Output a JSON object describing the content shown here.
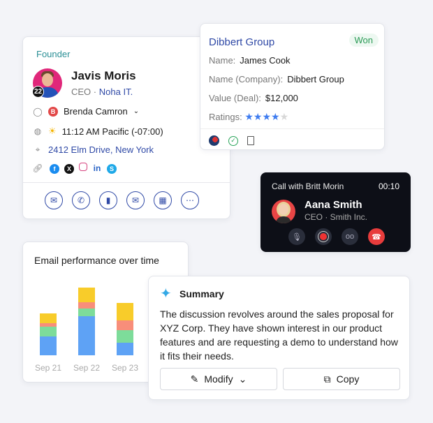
{
  "contact": {
    "tag": "Founder",
    "notifications": "22",
    "name": "Javis Moris",
    "role": "CEO",
    "separator": "·",
    "company": "Noha IT.",
    "owner_initial": "B",
    "owner": "Brenda Camron",
    "local_time": "11:12 AM Pacific (-07:00)",
    "address": "2412 Elm Drive, New York",
    "socials": [
      "facebook",
      "x",
      "instagram",
      "linkedin",
      "skype"
    ],
    "actions": [
      "email",
      "call",
      "note",
      "email-template",
      "meeting",
      "more"
    ]
  },
  "deal": {
    "title": "Dibbert Group",
    "status": "Won",
    "fields": [
      {
        "label": "Name:",
        "value": "James Cook"
      },
      {
        "label": "Name (Company):",
        "value": "Dibbert Group"
      },
      {
        "label": "Value (Deal):",
        "value": "$12,000"
      }
    ],
    "ratings_label": "Ratings:",
    "rating": 4,
    "rating_max": 5
  },
  "call": {
    "title": "Call with Britt Morin",
    "timer": "00:10",
    "name": "Aana Smith",
    "role": "CEO · Smith Inc.",
    "controls": [
      "mute",
      "record",
      "voicemail",
      "hang-up"
    ]
  },
  "chart_data": {
    "type": "bar",
    "stacked": true,
    "title": "Email performance over time",
    "categories": [
      "Sep 21",
      "Sep 22",
      "Sep 23"
    ],
    "series": [
      {
        "color": "#5ea2f5",
        "values": [
          27,
          56,
          18
        ]
      },
      {
        "color": "#7ddc9a",
        "values": [
          14,
          11,
          18
        ]
      },
      {
        "color": "#f88e7a",
        "values": [
          5,
          9,
          14
        ]
      },
      {
        "color": "#f8cc2a",
        "values": [
          14,
          21,
          25
        ]
      }
    ],
    "grid": false
  },
  "summary": {
    "title": "Summary",
    "text": "The discussion revolves around the sales proposal for XYZ Corp. They have shown interest in our product features and are requesting a demo to understand how it fits their needs.",
    "modify_label": "Modify",
    "copy_label": "Copy"
  }
}
